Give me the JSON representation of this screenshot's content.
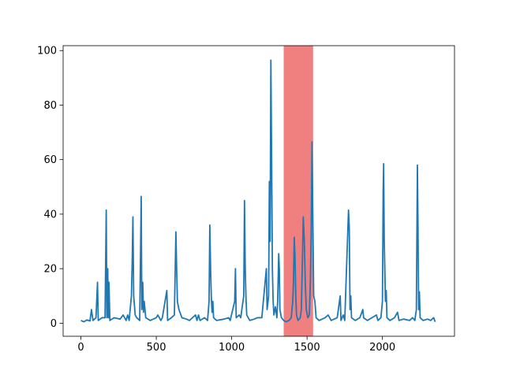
{
  "chart_data": {
    "type": "line",
    "title": "",
    "xlabel": "",
    "ylabel": "",
    "xlim": [
      -118,
      2478
    ],
    "ylim": [
      -4.8,
      101.8
    ],
    "x_ticks": [
      0,
      500,
      1000,
      1500,
      2000
    ],
    "y_ticks": [
      0,
      20,
      40,
      60,
      80,
      100
    ],
    "grid": false,
    "legend": "none",
    "highlight_band": {
      "x_start": 1345,
      "x_end": 1540,
      "color": "#f08080"
    },
    "series": [
      {
        "color": "#1f77b4",
        "points": [
          [
            0,
            1
          ],
          [
            20,
            0.5
          ],
          [
            40,
            1.2
          ],
          [
            60,
            0.8
          ],
          [
            70,
            5
          ],
          [
            80,
            1
          ],
          [
            100,
            2
          ],
          [
            110,
            15
          ],
          [
            115,
            1
          ],
          [
            140,
            2
          ],
          [
            160,
            2
          ],
          [
            168,
            41.5
          ],
          [
            172,
            2
          ],
          [
            178,
            20
          ],
          [
            182,
            2
          ],
          [
            186,
            15
          ],
          [
            192,
            1
          ],
          [
            220,
            2
          ],
          [
            260,
            1.5
          ],
          [
            280,
            3
          ],
          [
            300,
            1
          ],
          [
            310,
            3
          ],
          [
            320,
            1
          ],
          [
            335,
            10
          ],
          [
            340,
            22
          ],
          [
            345,
            39
          ],
          [
            350,
            10
          ],
          [
            360,
            3
          ],
          [
            370,
            2
          ],
          [
            390,
            1
          ],
          [
            400,
            46.5
          ],
          [
            404,
            5
          ],
          [
            410,
            15
          ],
          [
            415,
            4
          ],
          [
            420,
            8
          ],
          [
            430,
            2
          ],
          [
            460,
            1
          ],
          [
            500,
            2
          ],
          [
            510,
            3
          ],
          [
            530,
            1
          ],
          [
            540,
            2
          ],
          [
            570,
            12
          ],
          [
            575,
            1
          ],
          [
            600,
            2
          ],
          [
            620,
            3
          ],
          [
            630,
            33.5
          ],
          [
            635,
            20
          ],
          [
            640,
            8
          ],
          [
            650,
            5
          ],
          [
            670,
            2
          ],
          [
            700,
            1.5
          ],
          [
            720,
            1
          ],
          [
            760,
            3
          ],
          [
            770,
            1
          ],
          [
            780,
            3
          ],
          [
            790,
            1
          ],
          [
            820,
            2
          ],
          [
            840,
            1
          ],
          [
            850,
            8
          ],
          [
            855,
            36
          ],
          [
            860,
            20
          ],
          [
            865,
            9.5
          ],
          [
            870,
            4
          ],
          [
            875,
            8
          ],
          [
            880,
            2
          ],
          [
            900,
            1
          ],
          [
            950,
            1.5
          ],
          [
            980,
            2
          ],
          [
            990,
            1
          ],
          [
            1020,
            8
          ],
          [
            1025,
            20
          ],
          [
            1030,
            2
          ],
          [
            1050,
            3
          ],
          [
            1060,
            2
          ],
          [
            1080,
            10
          ],
          [
            1085,
            45
          ],
          [
            1090,
            20
          ],
          [
            1095,
            9
          ],
          [
            1100,
            3
          ],
          [
            1120,
            1
          ],
          [
            1150,
            1.5
          ],
          [
            1170,
            2
          ],
          [
            1200,
            2
          ],
          [
            1230,
            20
          ],
          [
            1235,
            5
          ],
          [
            1245,
            10
          ],
          [
            1250,
            52
          ],
          [
            1255,
            30
          ],
          [
            1260,
            96.5
          ],
          [
            1265,
            60
          ],
          [
            1270,
            20
          ],
          [
            1275,
            8
          ],
          [
            1280,
            3
          ],
          [
            1290,
            6
          ],
          [
            1300,
            2
          ],
          [
            1305,
            8
          ],
          [
            1312,
            25.5
          ],
          [
            1316,
            20
          ],
          [
            1320,
            5
          ],
          [
            1330,
            2
          ],
          [
            1345,
            1
          ],
          [
            1360,
            0.5
          ],
          [
            1380,
            1
          ],
          [
            1395,
            2
          ],
          [
            1405,
            8
          ],
          [
            1410,
            15
          ],
          [
            1415,
            31.5
          ],
          [
            1420,
            25
          ],
          [
            1425,
            10
          ],
          [
            1430,
            3
          ],
          [
            1440,
            1
          ],
          [
            1455,
            2
          ],
          [
            1462,
            5
          ],
          [
            1468,
            20
          ],
          [
            1475,
            39
          ],
          [
            1482,
            30
          ],
          [
            1488,
            15
          ],
          [
            1495,
            5
          ],
          [
            1505,
            2
          ],
          [
            1515,
            3
          ],
          [
            1522,
            15
          ],
          [
            1528,
            35
          ],
          [
            1533,
            66.5
          ],
          [
            1538,
            40
          ],
          [
            1544,
            10
          ],
          [
            1552,
            8
          ],
          [
            1560,
            2
          ],
          [
            1580,
            1
          ],
          [
            1620,
            2
          ],
          [
            1640,
            3
          ],
          [
            1660,
            1
          ],
          [
            1680,
            1.5
          ],
          [
            1700,
            2
          ],
          [
            1720,
            10
          ],
          [
            1725,
            1
          ],
          [
            1740,
            3
          ],
          [
            1750,
            1
          ],
          [
            1775,
            41.5
          ],
          [
            1780,
            35
          ],
          [
            1785,
            5
          ],
          [
            1790,
            10
          ],
          [
            1795,
            2
          ],
          [
            1820,
            1
          ],
          [
            1850,
            2
          ],
          [
            1870,
            5
          ],
          [
            1875,
            2
          ],
          [
            1900,
            1
          ],
          [
            1930,
            2
          ],
          [
            1960,
            3
          ],
          [
            1970,
            1
          ],
          [
            1990,
            2
          ],
          [
            2000,
            8
          ],
          [
            2005,
            49
          ],
          [
            2008,
            58.5
          ],
          [
            2012,
            30
          ],
          [
            2016,
            19
          ],
          [
            2020,
            8
          ],
          [
            2025,
            12
          ],
          [
            2030,
            2
          ],
          [
            2050,
            1
          ],
          [
            2080,
            2
          ],
          [
            2100,
            4
          ],
          [
            2110,
            1
          ],
          [
            2140,
            1.5
          ],
          [
            2180,
            1
          ],
          [
            2200,
            2
          ],
          [
            2215,
            1
          ],
          [
            2225,
            5
          ],
          [
            2232,
            58
          ],
          [
            2236,
            35
          ],
          [
            2240,
            5
          ],
          [
            2245,
            11.5
          ],
          [
            2250,
            2
          ],
          [
            2270,
            1
          ],
          [
            2300,
            1.5
          ],
          [
            2320,
            1
          ],
          [
            2340,
            2
          ],
          [
            2350,
            0.5
          ]
        ]
      }
    ]
  }
}
